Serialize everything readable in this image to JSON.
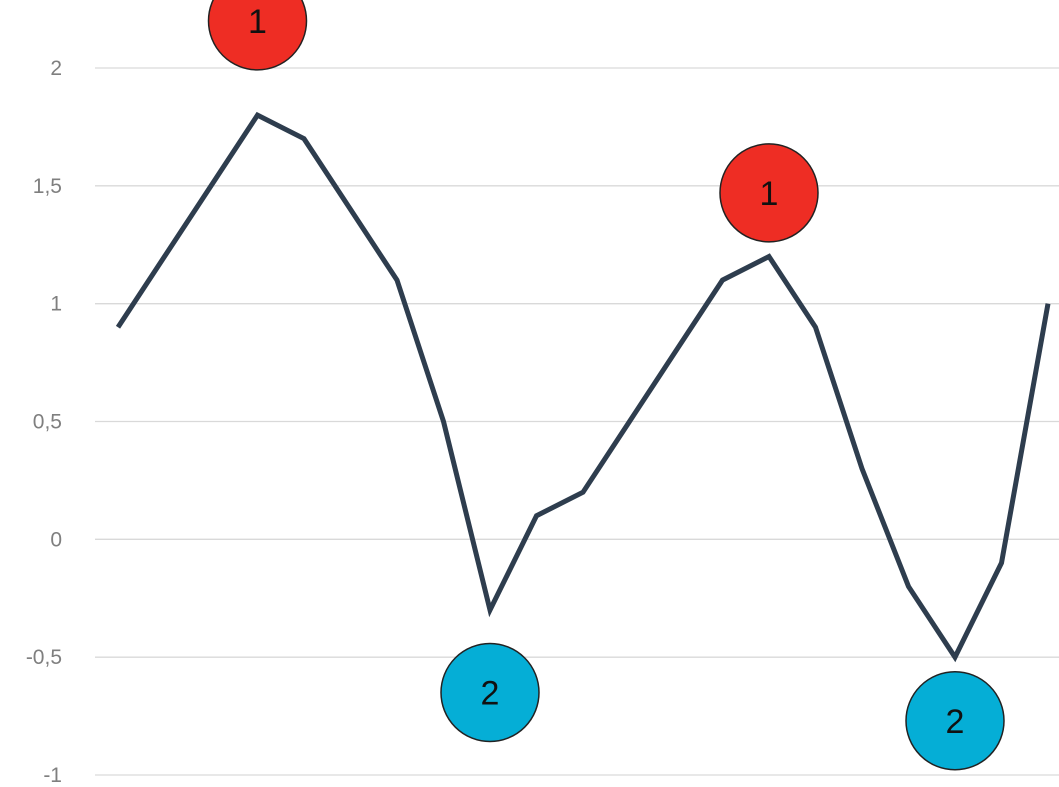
{
  "chart_data": {
    "type": "line",
    "title": "",
    "xlabel": "",
    "ylabel": "",
    "ylim": [
      -1,
      2
    ],
    "y_ticks": [
      2,
      1.5,
      1,
      0.5,
      0,
      -0.5,
      -1
    ],
    "y_tick_labels": [
      "2",
      "1,5",
      "1",
      "0,5",
      "0",
      "-0,5",
      "-1"
    ],
    "grid": true,
    "x": [
      1,
      2,
      3,
      4,
      5,
      6,
      7,
      8,
      9,
      10,
      11,
      12,
      13,
      14,
      15,
      16,
      17,
      18,
      19,
      20,
      21
    ],
    "series": [
      {
        "values": [
          0.9,
          1.2,
          1.5,
          1.8,
          1.7,
          1.4,
          1.1,
          0.5,
          -0.3,
          0.1,
          0.2,
          0.5,
          0.8,
          1.1,
          1.2,
          0.9,
          0.3,
          -0.2,
          -0.5,
          -0.1,
          1.0
        ],
        "color": "#2e3d4e"
      }
    ],
    "annotations": [
      {
        "text": "1",
        "x": 4,
        "y": 2.2,
        "color": "#ee2d24"
      },
      {
        "text": "2",
        "x": 9,
        "y": -0.65,
        "color": "#05aed6"
      },
      {
        "text": "1",
        "x": 15,
        "y": 1.47,
        "color": "#ee2d24"
      },
      {
        "text": "2",
        "x": 19,
        "y": -0.77,
        "color": "#05aed6"
      }
    ]
  }
}
